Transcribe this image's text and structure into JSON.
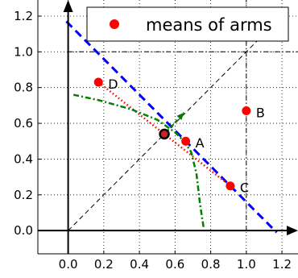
{
  "chart_data": {
    "type": "scatter",
    "title": "",
    "xlabel": "",
    "ylabel": "",
    "xlim": [
      -0.17,
      1.29
    ],
    "ylim": [
      -0.13,
      1.29
    ],
    "x_ticks": [
      "0.0",
      "0.2",
      "0.4",
      "0.6",
      "0.8",
      "1.0",
      "1.2"
    ],
    "x_tick_values": [
      0.0,
      0.2,
      0.4,
      0.6,
      0.8,
      1.0,
      1.2
    ],
    "y_ticks": [
      "0.0",
      "0.2",
      "0.4",
      "0.6",
      "0.8",
      "1.0",
      "1.2"
    ],
    "y_tick_values": [
      0.0,
      0.2,
      0.4,
      0.6,
      0.8,
      1.0,
      1.2
    ],
    "grid": true,
    "legend": {
      "position": "top-right",
      "entries": [
        "means of arms"
      ]
    },
    "colors": {
      "points": "#ff0000",
      "blue_line": "#0000ff",
      "red_dotted": "#ff0000",
      "green_dashdot": "#008000",
      "black": "#000000"
    },
    "series": [
      {
        "name": "means of arms",
        "points": [
          {
            "label": "A",
            "x": 0.66,
            "y": 0.5
          },
          {
            "label": "B",
            "x": 1.0,
            "y": 0.67
          },
          {
            "label": "C",
            "x": 0.91,
            "y": 0.25
          },
          {
            "label": "D",
            "x": 0.17,
            "y": 0.83
          }
        ]
      }
    ],
    "black_point": {
      "x": 0.54,
      "y": 0.54
    },
    "lines": {
      "blue_dashed": [
        [
          -0.01,
          1.17
        ],
        [
          1.17,
          -0.01
        ]
      ],
      "red_dotted": [
        [
          0.17,
          0.83
        ],
        [
          0.91,
          0.25
        ]
      ],
      "black_diagonal": [
        [
          0.0,
          0.0
        ],
        [
          1.16,
          1.16
        ]
      ],
      "green_dashdot": [
        [
          0.03,
          0.76
        ],
        [
          0.17,
          0.73
        ],
        [
          0.35,
          0.68
        ],
        [
          0.5,
          0.62
        ],
        [
          0.6,
          0.55
        ],
        [
          0.65,
          0.5
        ],
        [
          0.69,
          0.44
        ],
        [
          0.72,
          0.32
        ],
        [
          0.74,
          0.15
        ],
        [
          0.76,
          0.02
        ]
      ],
      "green_arrow": [
        [
          0.55,
          0.55
        ],
        [
          0.65,
          0.66
        ]
      ],
      "black_dashdot_h": [
        [
          0.0,
          1.0
        ],
        [
          1.29,
          1.0
        ]
      ],
      "black_dashdot_v": [
        [
          1.0,
          0.0
        ],
        [
          1.0,
          1.29
        ]
      ]
    }
  }
}
